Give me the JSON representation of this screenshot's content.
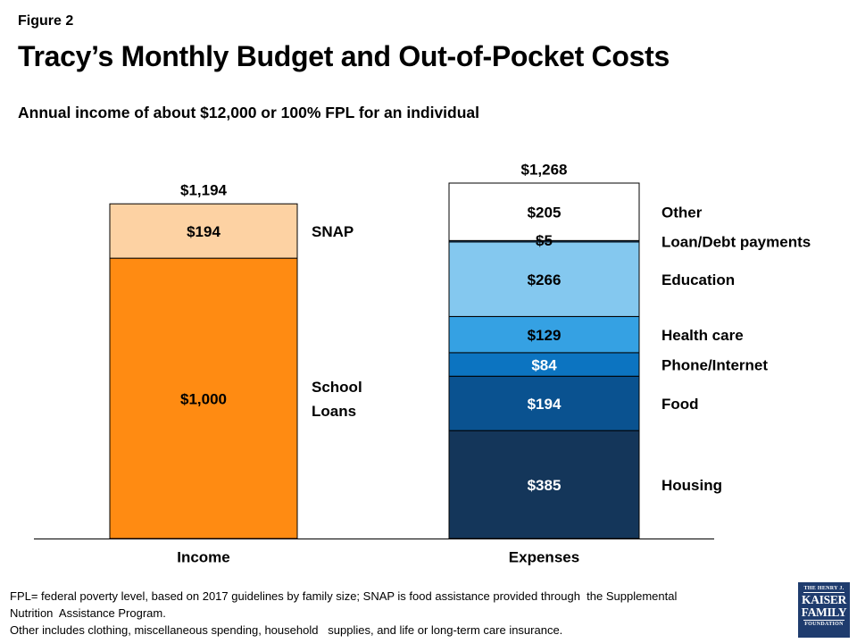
{
  "figure_label": "Figure 2",
  "title": "Tracy’s Monthly Budget and Out-of-Pocket Costs",
  "subtitle": "Annual income of about $12,000 or 100% FPL for an individual",
  "chart_data": {
    "type": "bar",
    "stacked": true,
    "categories": [
      "Income",
      "Expenses"
    ],
    "totals": [
      {
        "category": "Income",
        "value": 1194,
        "label": "$1,194"
      },
      {
        "category": "Expenses",
        "value": 1268,
        "label": "$1,268"
      }
    ],
    "stacks": [
      {
        "category": "Income",
        "segments": [
          {
            "name": "School Loans",
            "label_lines": [
              "School",
              "Loans"
            ],
            "value": 1000,
            "value_label": "$1,000",
            "color": "#ff8b12",
            "text_color": "#000000"
          },
          {
            "name": "SNAP",
            "label_lines": [
              "SNAP"
            ],
            "value": 194,
            "value_label": "$194",
            "color": "#fdd2a3",
            "text_color": "#000000"
          }
        ]
      },
      {
        "category": "Expenses",
        "segments": [
          {
            "name": "Housing",
            "label_lines": [
              "Housing"
            ],
            "value": 385,
            "value_label": "$385",
            "color": "#14365a",
            "text_color": "#ffffff"
          },
          {
            "name": "Food",
            "label_lines": [
              "Food"
            ],
            "value": 194,
            "value_label": "$194",
            "color": "#0a5290",
            "text_color": "#ffffff"
          },
          {
            "name": "Phone/Internet",
            "label_lines": [
              "Phone/Internet"
            ],
            "value": 84,
            "value_label": "$84",
            "color": "#0c74c1",
            "text_color": "#ffffff"
          },
          {
            "name": "Health care",
            "label_lines": [
              "Health care"
            ],
            "value": 129,
            "value_label": "$129",
            "color": "#35a1e3",
            "text_color": "#000000"
          },
          {
            "name": "Education",
            "label_lines": [
              "Education"
            ],
            "value": 266,
            "value_label": "$266",
            "color": "#84c8ef",
            "text_color": "#000000"
          },
          {
            "name": "Loan/Debt payments",
            "label_lines": [
              "Loan/Debt payments"
            ],
            "value": 5,
            "value_label": "$5",
            "color": "#20568f",
            "text_color": "#000000"
          },
          {
            "name": "Other",
            "label_lines": [
              "Other"
            ],
            "value": 205,
            "value_label": "$205",
            "color": "#ffffff",
            "text_color": "#000000"
          }
        ]
      }
    ],
    "ylim": [
      0,
      1268
    ],
    "grid": false,
    "legend": "right-of-bars"
  },
  "footnotes": [
    "FPL= federal poverty level, based on 2017 guidelines by family size; SNAP is food assistance provided through  the Supplemental",
    "Nutrition  Assistance Program.",
    "Other includes clothing, miscellaneous spending, household   supplies, and life or long-term care insurance."
  ],
  "logo": {
    "line1": "THE HENRY J.",
    "line2": "KAISER",
    "line3": "FAMILY",
    "line4": "FOUNDATION"
  }
}
